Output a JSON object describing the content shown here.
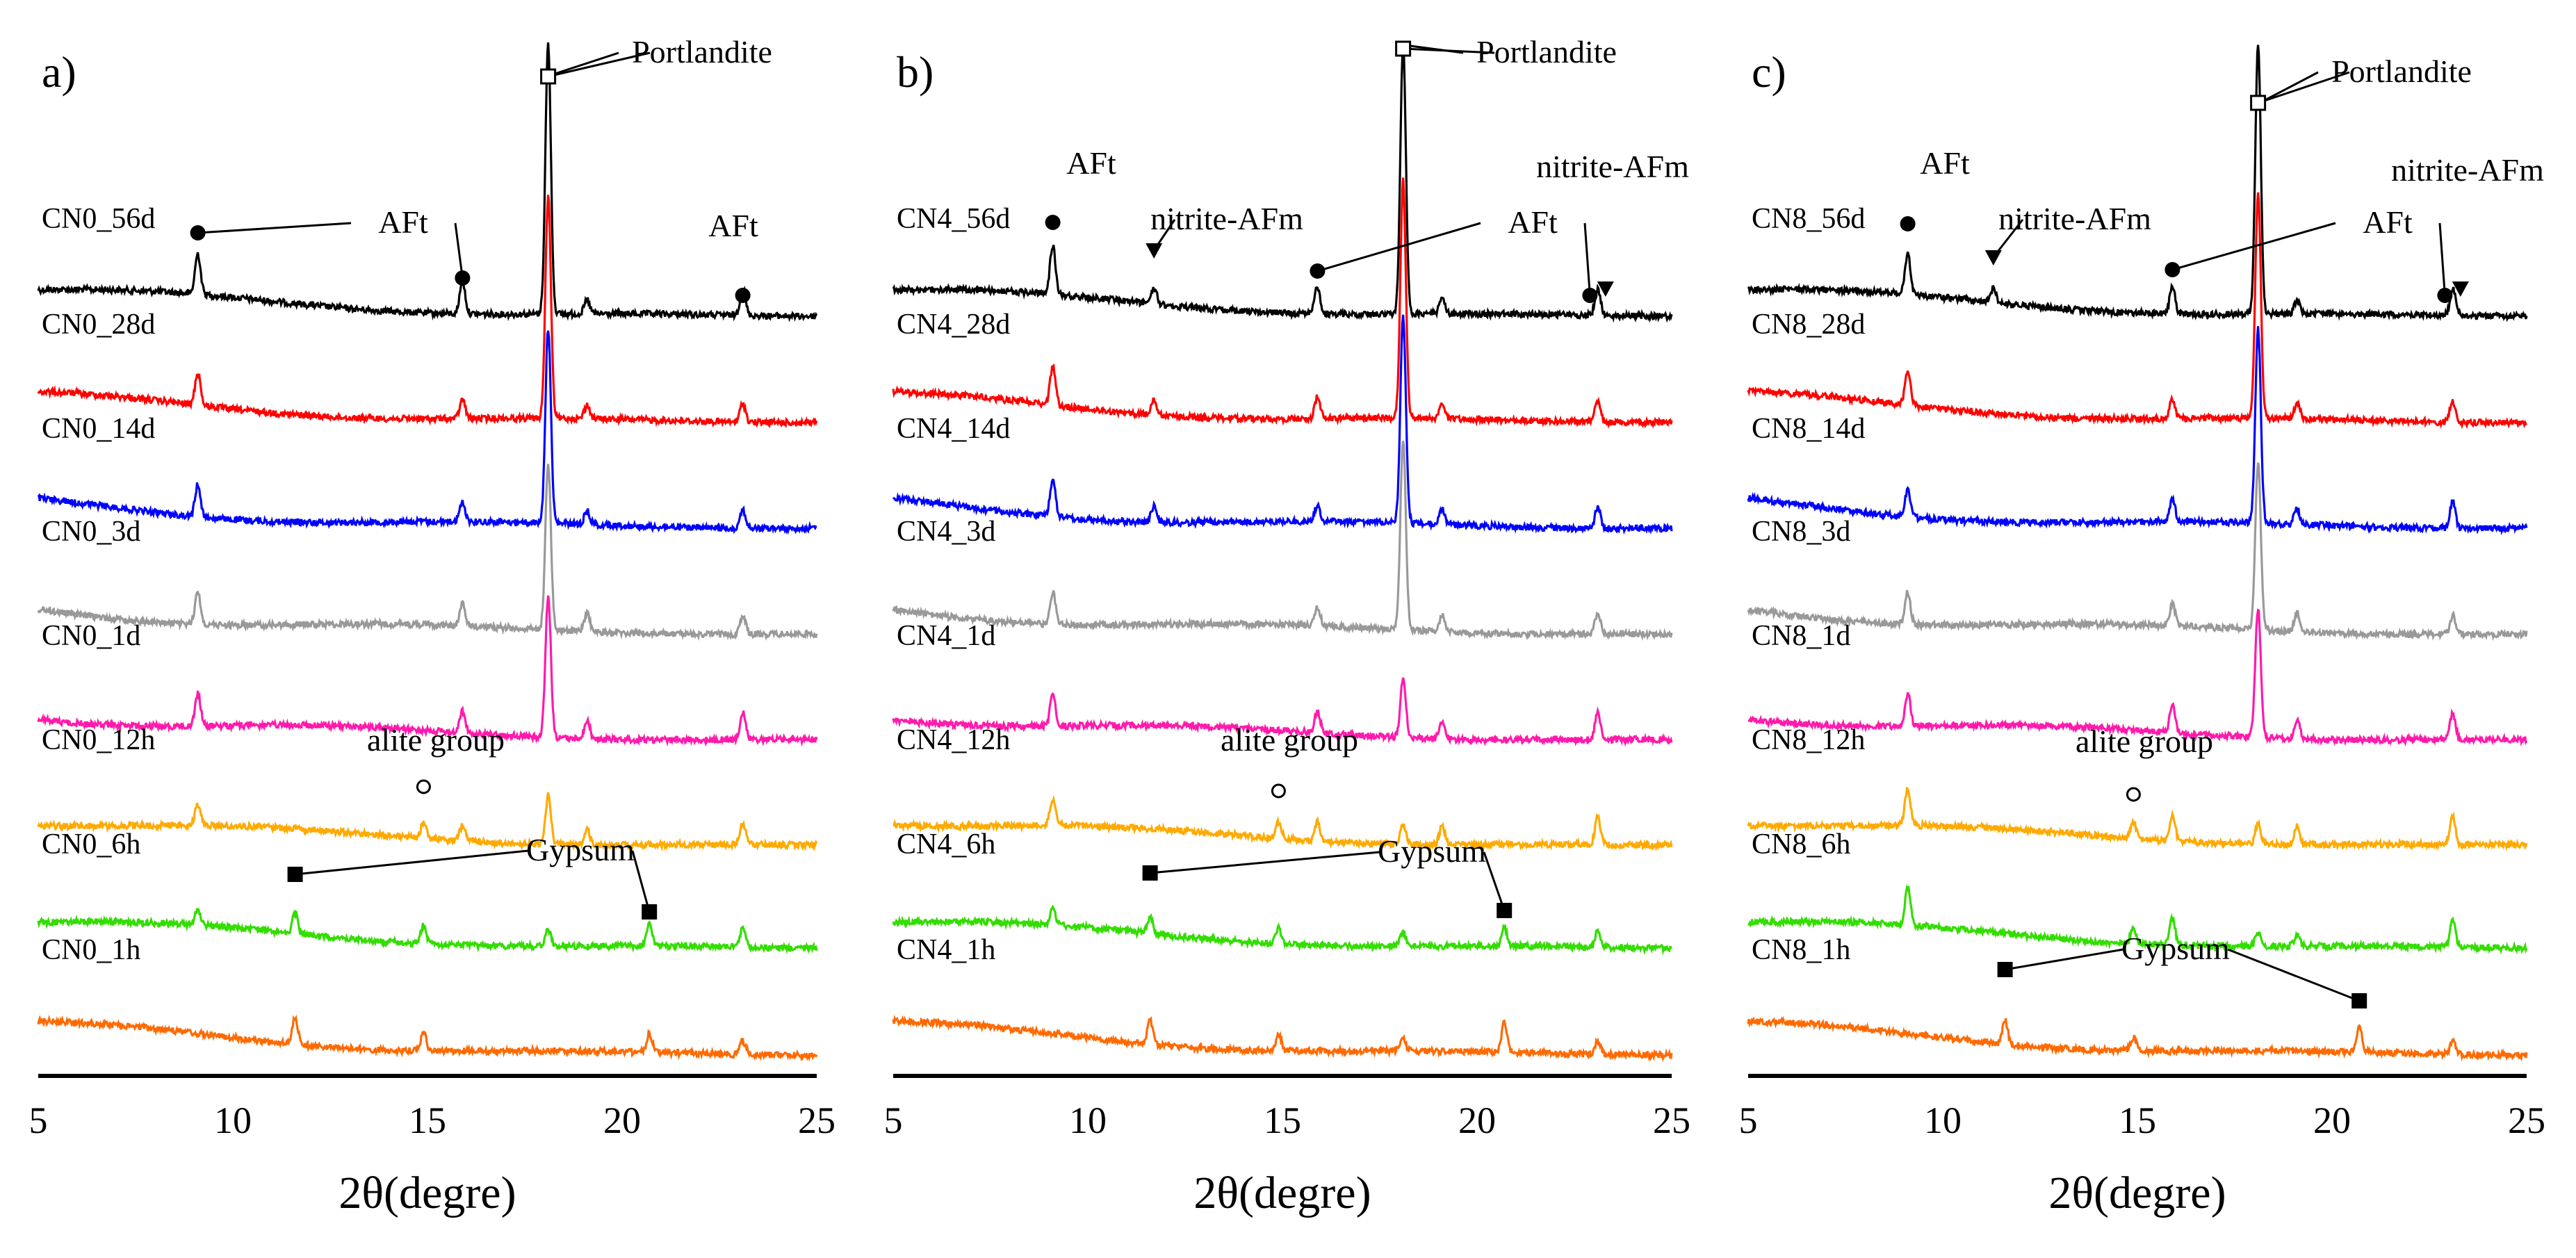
{
  "chart_data": [
    {
      "type": "line",
      "panel_label": "a)",
      "xlabel": "2θ(degre)",
      "ylabel": "",
      "xlim": [
        5,
        25
      ],
      "xticks": [
        "5",
        "10",
        "15",
        "20",
        "25"
      ],
      "legend": "inline-left",
      "series": [
        {
          "name": "CN0_56d",
          "color": "#000000",
          "peaks": [
            [
              9.1,
              0.15
            ],
            [
              15.9,
              0.12
            ],
            [
              18.1,
              1.0
            ],
            [
              19.1,
              0.05
            ],
            [
              23.1,
              0.1
            ]
          ]
        },
        {
          "name": "CN0_28d",
          "color": "#ff0000",
          "peaks": [
            [
              9.1,
              0.12
            ],
            [
              15.9,
              0.07
            ],
            [
              18.1,
              0.82
            ],
            [
              19.1,
              0.05
            ],
            [
              23.1,
              0.07
            ]
          ]
        },
        {
          "name": "CN0_14d",
          "color": "#0000ff",
          "peaks": [
            [
              9.1,
              0.12
            ],
            [
              15.9,
              0.07
            ],
            [
              18.1,
              0.72
            ],
            [
              19.1,
              0.05
            ],
            [
              23.1,
              0.07
            ]
          ]
        },
        {
          "name": "CN0_3d",
          "color": "#999999",
          "peaks": [
            [
              9.1,
              0.12
            ],
            [
              15.9,
              0.08
            ],
            [
              18.1,
              0.62
            ],
            [
              19.1,
              0.07
            ],
            [
              23.1,
              0.07
            ]
          ]
        },
        {
          "name": "CN0_1d",
          "color": "#ff1aac",
          "peaks": [
            [
              9.1,
              0.12
            ],
            [
              15.9,
              0.08
            ],
            [
              18.1,
              0.52
            ],
            [
              19.1,
              0.07
            ],
            [
              23.1,
              0.1
            ]
          ]
        },
        {
          "name": "CN0_12h",
          "color": "#ffaa00",
          "peaks": [
            [
              9.1,
              0.08
            ],
            [
              14.9,
              0.06
            ],
            [
              15.9,
              0.06
            ],
            [
              18.1,
              0.18
            ],
            [
              19.1,
              0.06
            ],
            [
              23.1,
              0.08
            ]
          ]
        },
        {
          "name": "CN0_6h",
          "color": "#33dd00",
          "peaks": [
            [
              9.1,
              0.06
            ],
            [
              11.6,
              0.08
            ],
            [
              14.9,
              0.07
            ],
            [
              18.1,
              0.06
            ],
            [
              20.7,
              0.08
            ],
            [
              23.1,
              0.07
            ]
          ]
        },
        {
          "name": "CN0_1h",
          "color": "#ff6a00",
          "peaks": [
            [
              11.6,
              0.1
            ],
            [
              14.9,
              0.07
            ],
            [
              20.7,
              0.07
            ],
            [
              23.1,
              0.05
            ]
          ]
        }
      ],
      "annotations": [
        {
          "text": "Portlandite",
          "marker": "open-square",
          "x": 18.1
        },
        {
          "text": "AFt",
          "marker": "circle",
          "x": [
            9.1,
            15.9
          ]
        },
        {
          "text": "AFt",
          "marker": "circle",
          "x": 23.1
        },
        {
          "text": "alite group",
          "marker": "open-circle",
          "x": 14.9
        },
        {
          "text": "Gypsum",
          "marker": "square",
          "x": [
            11.6,
            20.7
          ]
        }
      ]
    },
    {
      "type": "line",
      "panel_label": "b)",
      "xlabel": "2θ(degre)",
      "ylabel": "",
      "xlim": [
        5,
        25
      ],
      "xticks": [
        "5",
        "10",
        "15",
        "20",
        "25"
      ],
      "legend": "inline-left",
      "series": [
        {
          "name": "CN4_56d",
          "color": "#000000",
          "peaks": [
            [
              9.1,
              0.18
            ],
            [
              11.7,
              0.06
            ],
            [
              15.9,
              0.1
            ],
            [
              18.1,
              1.0
            ],
            [
              19.1,
              0.06
            ],
            [
              23.1,
              0.1
            ]
          ]
        },
        {
          "name": "CN4_28d",
          "color": "#ff0000",
          "peaks": [
            [
              9.1,
              0.14
            ],
            [
              11.7,
              0.06
            ],
            [
              15.9,
              0.08
            ],
            [
              18.1,
              0.88
            ],
            [
              19.1,
              0.06
            ],
            [
              23.1,
              0.08
            ]
          ]
        },
        {
          "name": "CN4_14d",
          "color": "#0000ff",
          "peaks": [
            [
              9.1,
              0.14
            ],
            [
              11.7,
              0.06
            ],
            [
              15.9,
              0.06
            ],
            [
              18.1,
              0.76
            ],
            [
              19.1,
              0.06
            ],
            [
              23.1,
              0.08
            ]
          ]
        },
        {
          "name": "CN4_3d",
          "color": "#999999",
          "peaks": [
            [
              9.1,
              0.12
            ],
            [
              15.9,
              0.07
            ],
            [
              18.1,
              0.7
            ],
            [
              19.1,
              0.06
            ],
            [
              23.1,
              0.08
            ]
          ]
        },
        {
          "name": "CN4_1d",
          "color": "#ff1aac",
          "peaks": [
            [
              9.1,
              0.12
            ],
            [
              15.9,
              0.08
            ],
            [
              18.1,
              0.22
            ],
            [
              19.1,
              0.07
            ],
            [
              23.1,
              0.1
            ]
          ]
        },
        {
          "name": "CN4_12h",
          "color": "#ffaa00",
          "peaks": [
            [
              9.1,
              0.1
            ],
            [
              14.9,
              0.06
            ],
            [
              15.9,
              0.07
            ],
            [
              18.1,
              0.07
            ],
            [
              19.1,
              0.07
            ],
            [
              23.1,
              0.1
            ]
          ]
        },
        {
          "name": "CN4_6h",
          "color": "#33dd00",
          "peaks": [
            [
              9.1,
              0.06
            ],
            [
              11.6,
              0.06
            ],
            [
              14.9,
              0.06
            ],
            [
              18.1,
              0.05
            ],
            [
              20.7,
              0.07
            ],
            [
              23.1,
              0.06
            ]
          ]
        },
        {
          "name": "CN4_1h",
          "color": "#ff6a00",
          "peaks": [
            [
              11.6,
              0.09
            ],
            [
              14.9,
              0.06
            ],
            [
              18.1,
              0.04
            ],
            [
              20.7,
              0.11
            ],
            [
              23.1,
              0.05
            ]
          ]
        }
      ],
      "annotations": [
        {
          "text": "Portlandite",
          "marker": "open-square",
          "x": 18.1
        },
        {
          "text": "AFt",
          "marker": "circle",
          "x": 9.1
        },
        {
          "text": "nitrite-AFm",
          "marker": "triangle-down",
          "x": 11.7
        },
        {
          "text": "AFt",
          "marker": "circle",
          "x": [
            15.9,
            22.9
          ]
        },
        {
          "text": "nitrite-AFm",
          "marker": "triangle-down",
          "x": 23.3
        },
        {
          "text": "alite group",
          "marker": "open-circle",
          "x": 14.9
        },
        {
          "text": "Gypsum",
          "marker": "square",
          "x": [
            11.6,
            20.7
          ]
        }
      ]
    },
    {
      "type": "line",
      "panel_label": "c)",
      "xlabel": "2θ(degre)",
      "ylabel": "",
      "xlim": [
        5,
        25
      ],
      "xticks": [
        "5",
        "10",
        "15",
        "20",
        "25"
      ],
      "legend": "inline-left",
      "series": [
        {
          "name": "CN8_56d",
          "color": "#000000",
          "peaks": [
            [
              9.1,
              0.15
            ],
            [
              11.3,
              0.05
            ],
            [
              15.9,
              0.1
            ],
            [
              18.1,
              1.0
            ],
            [
              19.1,
              0.05
            ],
            [
              23.1,
              0.1
            ]
          ]
        },
        {
          "name": "CN8_28d",
          "color": "#ff0000",
          "peaks": [
            [
              9.1,
              0.12
            ],
            [
              15.9,
              0.07
            ],
            [
              18.1,
              0.84
            ],
            [
              19.1,
              0.06
            ],
            [
              23.1,
              0.08
            ]
          ]
        },
        {
          "name": "CN8_14d",
          "color": "#0000ff",
          "peaks": [
            [
              9.1,
              0.1
            ],
            [
              15.9,
              0.08
            ],
            [
              18.1,
              0.72
            ],
            [
              19.1,
              0.06
            ],
            [
              23.1,
              0.1
            ]
          ]
        },
        {
          "name": "CN8_3d",
          "color": "#999999",
          "peaks": [
            [
              9.1,
              0.12
            ],
            [
              15.9,
              0.08
            ],
            [
              18.1,
              0.62
            ],
            [
              19.1,
              0.07
            ],
            [
              23.1,
              0.07
            ]
          ]
        },
        {
          "name": "CN8_1d",
          "color": "#ff1aac",
          "peaks": [
            [
              9.1,
              0.12
            ],
            [
              15.9,
              0.1
            ],
            [
              18.1,
              0.48
            ],
            [
              19.1,
              0.07
            ],
            [
              23.1,
              0.1
            ]
          ]
        },
        {
          "name": "CN8_12h",
          "color": "#ffaa00",
          "peaks": [
            [
              9.1,
              0.14
            ],
            [
              14.9,
              0.06
            ],
            [
              15.9,
              0.1
            ],
            [
              18.1,
              0.08
            ],
            [
              19.1,
              0.07
            ],
            [
              23.1,
              0.1
            ]
          ]
        },
        {
          "name": "CN8_6h",
          "color": "#33dd00",
          "peaks": [
            [
              9.1,
              0.14
            ],
            [
              14.9,
              0.06
            ],
            [
              15.9,
              0.1
            ],
            [
              18.1,
              0.05
            ],
            [
              19.1,
              0.04
            ],
            [
              23.1,
              0.1
            ]
          ]
        },
        {
          "name": "CN8_1h",
          "color": "#ff6a00",
          "peaks": [
            [
              11.6,
              0.09
            ],
            [
              14.9,
              0.05
            ],
            [
              20.7,
              0.1
            ],
            [
              23.1,
              0.05
            ]
          ]
        }
      ],
      "annotations": [
        {
          "text": "Portlandite",
          "marker": "open-square",
          "x": 18.1
        },
        {
          "text": "AFt",
          "marker": "circle",
          "x": 9.1
        },
        {
          "text": "nitrite-AFm",
          "marker": "triangle-down",
          "x": 11.3
        },
        {
          "text": "AFt",
          "marker": "circle",
          "x": [
            15.9,
            22.9
          ]
        },
        {
          "text": "nitrite-AFm",
          "marker": "triangle-down",
          "x": 23.3
        },
        {
          "text": "alite group",
          "marker": "open-circle",
          "x": 14.9
        },
        {
          "text": "Gypsum",
          "marker": "square",
          "x": [
            11.6,
            20.7
          ]
        }
      ]
    }
  ]
}
